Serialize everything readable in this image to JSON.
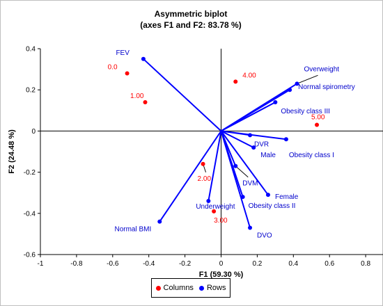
{
  "chart_data": {
    "type": "scatter",
    "title": "Asymmetric biplot",
    "subtitle": "(axes F1 and F2: 83.78 %)",
    "xlabel": "F1 (59.30 %)",
    "ylabel": "F2 (24.48 %)",
    "xlim": [
      -1,
      1
    ],
    "ylim": [
      -0.6,
      0.4
    ],
    "xticks": [
      "-1",
      "-0.8",
      "-0.6",
      "-0.4",
      "-0.2",
      "0",
      "0.2",
      "0.4",
      "0.6",
      "0.8",
      "1"
    ],
    "yticks": [
      "-0.6",
      "-0.4",
      "-0.2",
      "0",
      "0.2",
      "0.4"
    ],
    "grid": false,
    "legend_position": "bottom",
    "series": [
      {
        "name": "Columns",
        "color": "#ff0000",
        "points": [
          {
            "label": "0.0",
            "x": -0.52,
            "y": 0.28
          },
          {
            "label": "1.00",
            "x": -0.42,
            "y": 0.14
          },
          {
            "label": "4.00",
            "x": 0.08,
            "y": 0.24
          },
          {
            "label": "5.00",
            "x": 0.53,
            "y": 0.03
          },
          {
            "label": "2.00",
            "x": -0.1,
            "y": -0.16
          },
          {
            "label": "3.00",
            "x": -0.04,
            "y": -0.39
          }
        ]
      },
      {
        "name": "Rows",
        "color": "#0000ff",
        "vectors": true,
        "points": [
          {
            "label": "FEV",
            "x": -0.43,
            "y": 0.35
          },
          {
            "label": "Overweight",
            "x": 0.42,
            "y": 0.23
          },
          {
            "label": "Normal spirometry",
            "x": 0.38,
            "y": 0.2
          },
          {
            "label": "Obesity class III",
            "x": 0.3,
            "y": 0.14
          },
          {
            "label": "DVR",
            "x": 0.16,
            "y": -0.02
          },
          {
            "label": "Obesity class I",
            "x": 0.36,
            "y": -0.04
          },
          {
            "label": "Male",
            "x": 0.18,
            "y": -0.08
          },
          {
            "label": "DVM",
            "x": 0.08,
            "y": -0.17
          },
          {
            "label": "Female",
            "x": 0.26,
            "y": -0.31
          },
          {
            "label": "Obesity class II",
            "x": 0.12,
            "y": -0.32
          },
          {
            "label": "DVO",
            "x": 0.16,
            "y": -0.47
          },
          {
            "label": "Underweight",
            "x": -0.07,
            "y": -0.34
          },
          {
            "label": "Normal BMI",
            "x": -0.34,
            "y": -0.44
          }
        ]
      }
    ]
  }
}
